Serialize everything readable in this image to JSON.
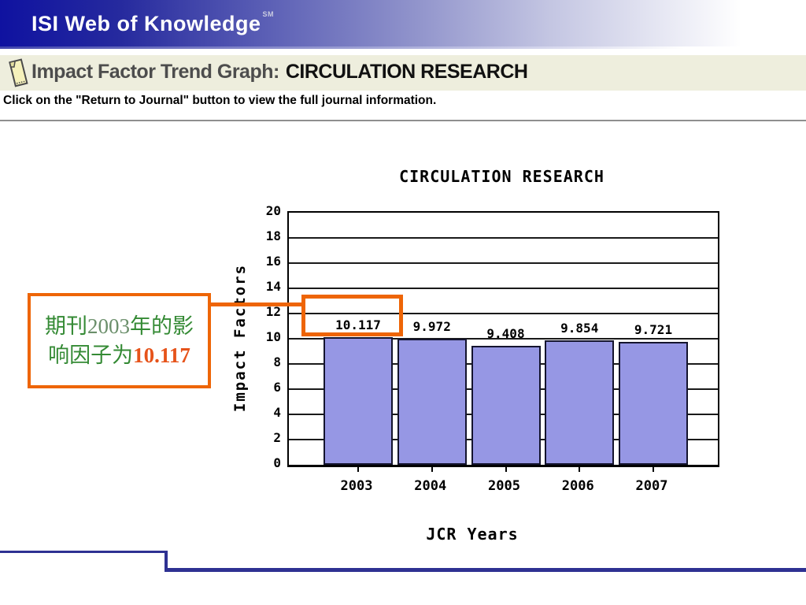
{
  "window": {
    "brand": "ISI Web of Knowledge",
    "brand_mark": "SM"
  },
  "page_header": {
    "icon": "note-icon",
    "title_prefix": "Impact Factor Trend Graph:",
    "journal_name": "CIRCULATION RESEARCH",
    "instruction": "Click on the \"Return to Journal\" button to view the full journal information."
  },
  "chart_data": {
    "type": "bar",
    "title": "CIRCULATION RESEARCH",
    "xlabel": "JCR Years",
    "ylabel": "Impact Factors",
    "categories": [
      "2003",
      "2004",
      "2005",
      "2006",
      "2007"
    ],
    "values": [
      10.117,
      9.972,
      9.408,
      9.854,
      9.721
    ],
    "value_labels": [
      "10.117",
      "9.972",
      "9.408",
      "9.854",
      "9.721"
    ],
    "ylim": [
      0,
      20
    ],
    "ytick_step": 2,
    "grid": true,
    "legend": "none",
    "bar_color": "#9697e4",
    "bar_border_color": "#14142e"
  },
  "annotation": {
    "highlighted_year": "2003",
    "highlighted_value": "10.117",
    "line1_part1": "期刊",
    "line1_year": "2003",
    "line1_part2": "年的影",
    "line2_part1": "响因子为",
    "line2_value": "10.117",
    "colors": {
      "box_border": "#ee6506",
      "text_green": "#348a34",
      "year_green_gray": "#6b8f6b",
      "value_orange": "#e6531a"
    }
  },
  "colors": {
    "header_navy": "#0f12a0",
    "section_beige": "#eeeedd",
    "bottom_line_navy": "#2e3192",
    "accent_orange": "#ee6506"
  }
}
